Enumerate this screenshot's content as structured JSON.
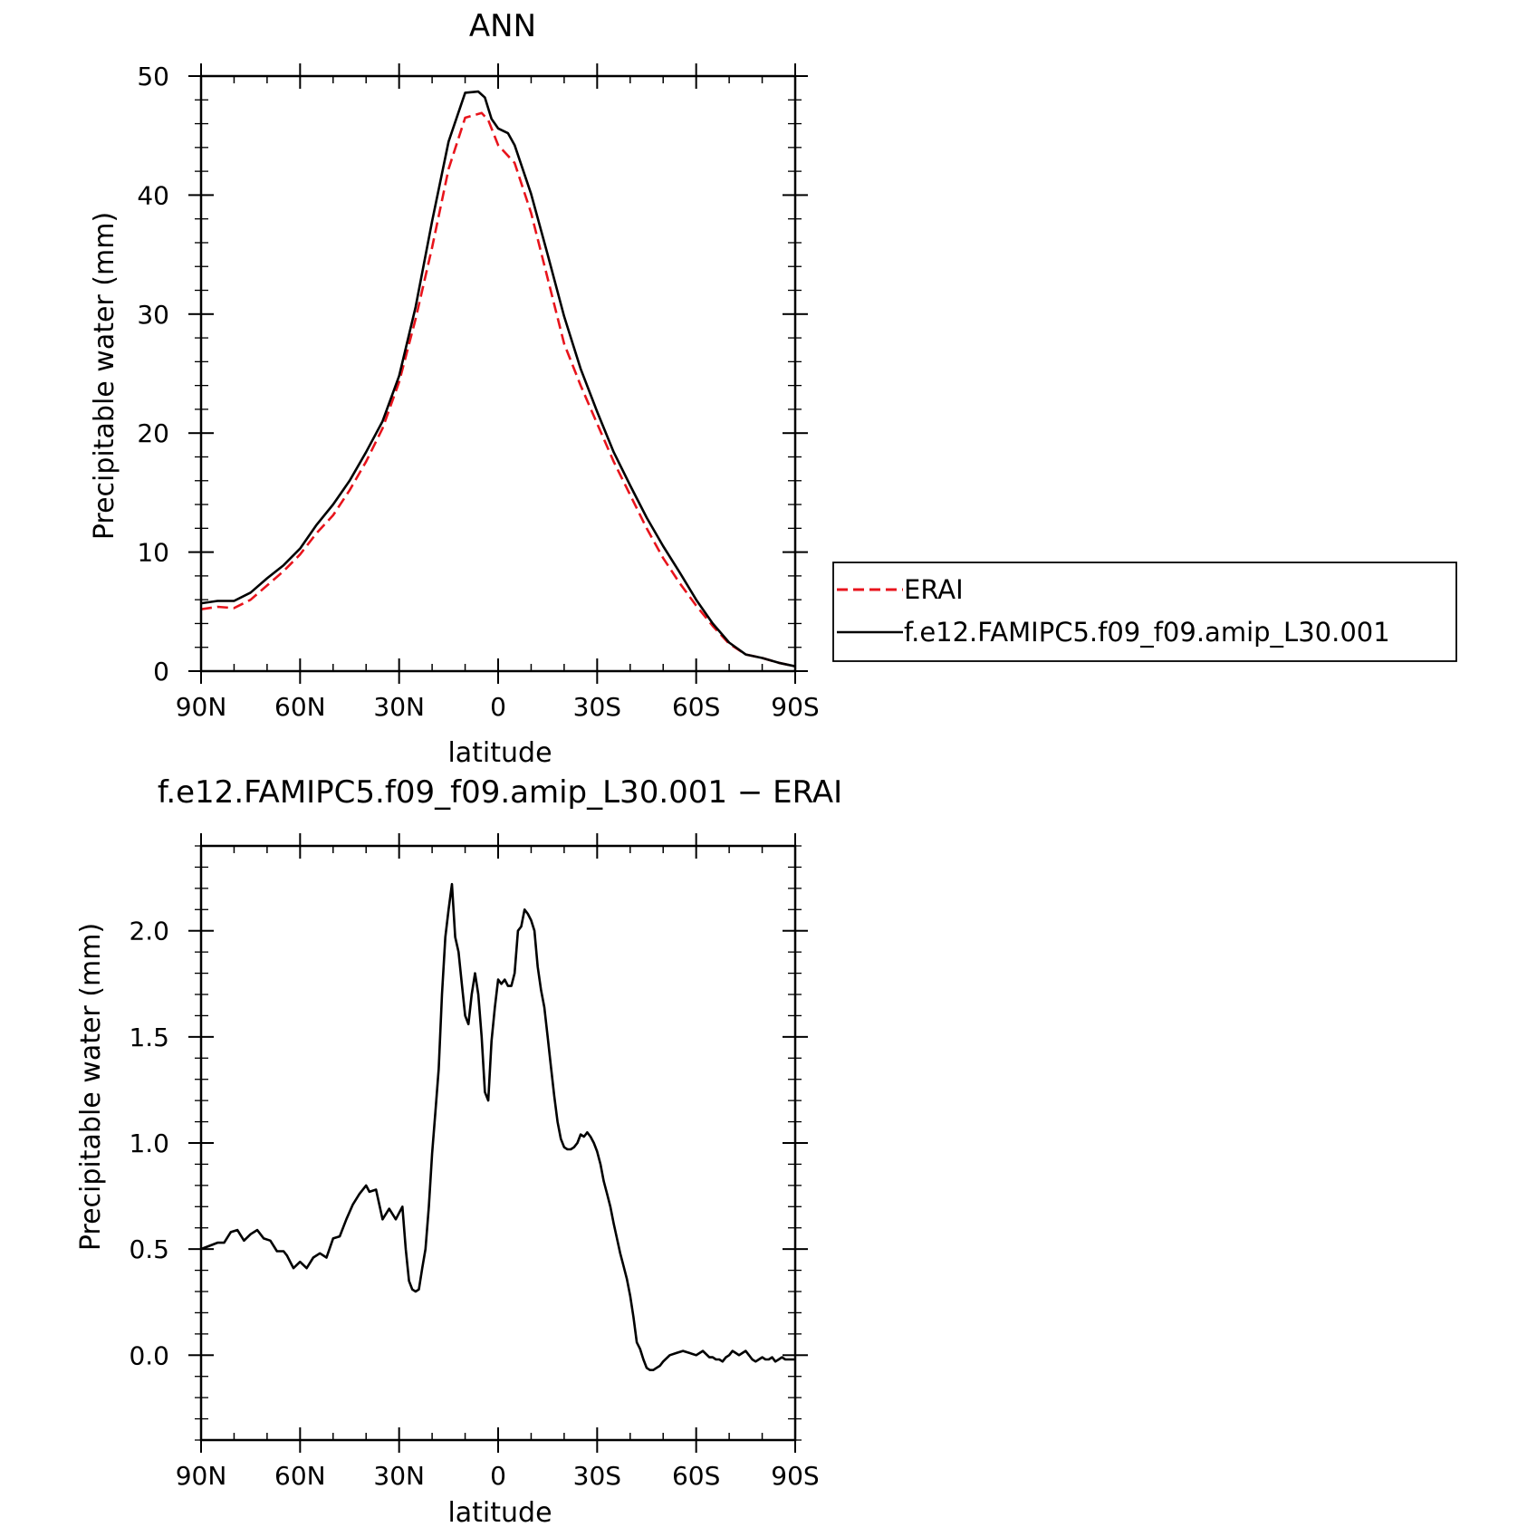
{
  "chart_data": [
    {
      "type": "line",
      "title": "ANN",
      "xlabel": "latitude",
      "ylabel": "Precipitable water (mm)",
      "xlim": [
        90,
        -90
      ],
      "ylim": [
        0,
        50
      ],
      "x_ticks": [
        {
          "value": 90,
          "label": "90N"
        },
        {
          "value": 60,
          "label": "60N"
        },
        {
          "value": 30,
          "label": "30N"
        },
        {
          "value": 0,
          "label": "0"
        },
        {
          "value": -30,
          "label": "30S"
        },
        {
          "value": -60,
          "label": "60S"
        },
        {
          "value": -90,
          "label": "90S"
        }
      ],
      "y_ticks": [
        {
          "value": 0,
          "label": "0"
        },
        {
          "value": 10,
          "label": "10"
        },
        {
          "value": 20,
          "label": "20"
        },
        {
          "value": 30,
          "label": "30"
        },
        {
          "value": 40,
          "label": "40"
        },
        {
          "value": 50,
          "label": "50"
        }
      ],
      "legend": {
        "placement": "right",
        "entries": [
          {
            "label": "ERAI",
            "color": "#e8141c",
            "dash": "dashed"
          },
          {
            "label": "f.e12.FAMIPC5.f09_f09.amip_L30.001",
            "color": "#000000",
            "dash": "solid"
          }
        ]
      },
      "series": [
        {
          "name": "ERAI",
          "color": "#e8141c",
          "dash": "dashed",
          "x": [
            90,
            85,
            80,
            75,
            70,
            65,
            60,
            55,
            50,
            45,
            40,
            35,
            30,
            25,
            20,
            15,
            10,
            5,
            3,
            0,
            -5,
            -10,
            -15,
            -20,
            -25,
            -30,
            -35,
            -40,
            -45,
            -50,
            -55,
            -60,
            -65,
            -70,
            -75,
            -80,
            -85,
            -90
          ],
          "y": [
            5.2,
            5.4,
            5.3,
            6.0,
            7.2,
            8.4,
            9.8,
            11.6,
            13.1,
            15.2,
            17.6,
            20.4,
            24.3,
            29.6,
            35.6,
            42.2,
            46.5,
            46.9,
            46.3,
            44.2,
            42.7,
            38.5,
            33.0,
            27.5,
            24.0,
            20.8,
            17.6,
            14.8,
            12.0,
            9.5,
            7.4,
            5.5,
            3.8,
            2.3,
            1.4,
            1.1,
            0.7,
            0.4
          ]
        },
        {
          "name": "f.e12.FAMIPC5.f09_f09.amip_L30.001",
          "color": "#000000",
          "dash": "solid",
          "x": [
            90,
            85,
            80,
            75,
            70,
            65,
            60,
            55,
            50,
            45,
            40,
            35,
            30,
            25,
            20,
            15,
            10,
            6,
            4,
            2,
            0,
            -3,
            -5,
            -10,
            -15,
            -20,
            -25,
            -30,
            -35,
            -40,
            -45,
            -50,
            -55,
            -60,
            -65,
            -70,
            -75,
            -80,
            -85,
            -90
          ],
          "y": [
            5.7,
            5.9,
            5.9,
            6.6,
            7.8,
            8.9,
            10.3,
            12.3,
            14.0,
            16.0,
            18.4,
            21.0,
            24.8,
            30.6,
            37.8,
            44.5,
            48.6,
            48.7,
            48.2,
            46.4,
            45.6,
            45.2,
            44.2,
            40.1,
            35.0,
            29.8,
            25.4,
            21.8,
            18.4,
            15.6,
            12.9,
            10.5,
            8.3,
            6.0,
            4.0,
            2.4,
            1.4,
            1.1,
            0.7,
            0.4
          ]
        }
      ]
    },
    {
      "type": "line",
      "title": "f.e12.FAMIPC5.f09_f09.amip_L30.001 − ERAI",
      "xlabel": "latitude",
      "ylabel": "Precipitable water (mm)",
      "xlim": [
        90,
        -90
      ],
      "ylim": [
        -0.4,
        2.4
      ],
      "x_ticks": [
        {
          "value": 90,
          "label": "90N"
        },
        {
          "value": 60,
          "label": "60N"
        },
        {
          "value": 30,
          "label": "30N"
        },
        {
          "value": 0,
          "label": "0"
        },
        {
          "value": -30,
          "label": "30S"
        },
        {
          "value": -60,
          "label": "60S"
        },
        {
          "value": -90,
          "label": "90S"
        }
      ],
      "y_ticks": [
        {
          "value": 0.0,
          "label": "0.0"
        },
        {
          "value": 0.5,
          "label": "0.5"
        },
        {
          "value": 1.0,
          "label": "1.0"
        },
        {
          "value": 1.5,
          "label": "1.5"
        },
        {
          "value": 2.0,
          "label": "2.0"
        }
      ],
      "series": [
        {
          "name": "",
          "color": "#000000",
          "dash": "solid",
          "x": [
            90,
            85,
            83,
            81,
            79,
            77,
            75,
            73,
            71,
            69,
            67,
            65,
            64,
            62,
            60,
            58,
            56,
            54,
            52,
            50,
            48,
            46,
            44,
            42,
            40,
            39,
            37,
            35,
            33,
            31,
            29,
            28,
            27,
            26,
            25,
            24,
            23,
            22,
            21,
            20,
            19,
            18,
            17,
            16,
            15,
            14,
            13,
            12,
            11,
            10,
            9,
            8,
            7,
            6,
            5,
            4,
            3,
            2,
            1,
            0,
            -1,
            -2,
            -3,
            -4,
            -5,
            -6,
            -7,
            -8,
            -9,
            -10,
            -11,
            -12,
            -13,
            -14,
            -15,
            -16,
            -17,
            -18,
            -19,
            -20,
            -21,
            -22,
            -23,
            -24,
            -25,
            -26,
            -27,
            -28,
            -29,
            -30,
            -31,
            -32,
            -33,
            -34,
            -35,
            -36,
            -37,
            -38,
            -39,
            -40,
            -41,
            -42,
            -43,
            -44,
            -45,
            -46,
            -47,
            -48,
            -49,
            -50,
            -52,
            -54,
            -56,
            -58,
            -60,
            -62,
            -64,
            -65,
            -66,
            -67,
            -68,
            -69,
            -70,
            -71,
            -72,
            -73,
            -74,
            -75,
            -76,
            -77,
            -78,
            -79,
            -80,
            -81,
            -82,
            -83,
            -84,
            -85,
            -86,
            -87,
            -88,
            -89,
            -90
          ],
          "y": [
            0.5,
            0.53,
            0.53,
            0.58,
            0.59,
            0.54,
            0.57,
            0.59,
            0.55,
            0.54,
            0.49,
            0.49,
            0.47,
            0.41,
            0.44,
            0.41,
            0.46,
            0.48,
            0.46,
            0.55,
            0.56,
            0.64,
            0.71,
            0.76,
            0.8,
            0.77,
            0.78,
            0.64,
            0.69,
            0.64,
            0.7,
            0.5,
            0.35,
            0.31,
            0.3,
            0.31,
            0.41,
            0.5,
            0.7,
            0.95,
            1.15,
            1.35,
            1.7,
            1.97,
            2.1,
            2.22,
            1.97,
            1.9,
            1.75,
            1.6,
            1.56,
            1.7,
            1.8,
            1.7,
            1.5,
            1.24,
            1.2,
            1.48,
            1.64,
            1.77,
            1.75,
            1.77,
            1.74,
            1.74,
            1.8,
            2.0,
            2.02,
            2.1,
            2.08,
            2.05,
            2.0,
            1.83,
            1.72,
            1.64,
            1.5,
            1.36,
            1.22,
            1.1,
            1.02,
            0.98,
            0.97,
            0.97,
            0.98,
            1.0,
            1.04,
            1.03,
            1.05,
            1.03,
            1.0,
            0.96,
            0.9,
            0.82,
            0.76,
            0.7,
            0.62,
            0.55,
            0.48,
            0.42,
            0.36,
            0.28,
            0.18,
            0.06,
            0.03,
            -0.02,
            -0.06,
            -0.07,
            -0.07,
            -0.06,
            -0.05,
            -0.03,
            0.0,
            0.01,
            0.02,
            0.01,
            0.0,
            0.02,
            -0.01,
            -0.01,
            -0.02,
            -0.02,
            -0.03,
            -0.01,
            0.0,
            0.02,
            0.01,
            0.0,
            0.01,
            0.02,
            0.0,
            -0.02,
            -0.03,
            -0.02,
            -0.01,
            -0.02,
            -0.02,
            -0.01,
            -0.03,
            -0.02,
            -0.01,
            -0.02,
            -0.02,
            -0.02,
            -0.02
          ]
        }
      ]
    }
  ]
}
